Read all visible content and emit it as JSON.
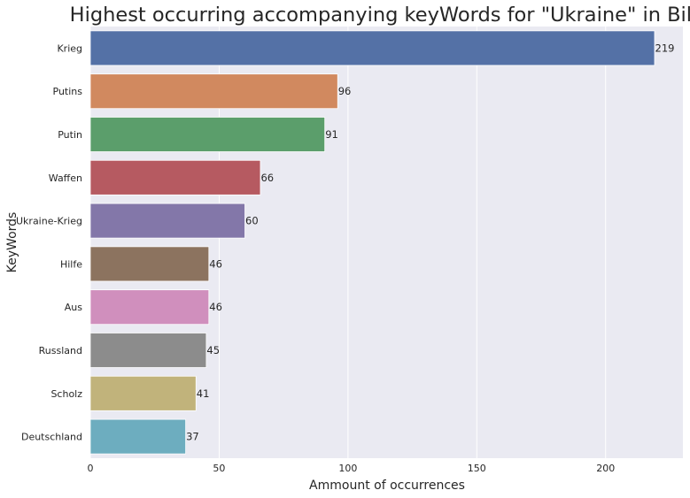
{
  "chart_data": {
    "type": "bar",
    "orientation": "horizontal",
    "title": "Highest occurring accompanying keyWords for \"Ukraine\" in Bild",
    "xlabel": "Ammount of occurrences",
    "ylabel": "KeyWords",
    "categories": [
      "Krieg",
      "Putins",
      "Putin",
      "Waffen",
      "Ukraine-Krieg",
      "Hilfe",
      "Aus",
      "Russland",
      "Scholz",
      "Deutschland"
    ],
    "values": [
      219,
      96,
      91,
      66,
      60,
      46,
      46,
      45,
      41,
      37
    ],
    "value_labels": [
      "219",
      "96",
      "91",
      "66",
      "60",
      "46",
      "46",
      "45",
      "41",
      "37"
    ],
    "xticks": [
      "0",
      "50",
      "100",
      "150",
      "200"
    ],
    "xtick_values": [
      0,
      50,
      100,
      150,
      200
    ],
    "xlim": [
      0,
      230
    ],
    "grid": true,
    "background": "#eaeaf2",
    "colors": [
      "#5471a6",
      "#d1895f",
      "#5b9e6b",
      "#b65a61",
      "#8377a9",
      "#8c735f",
      "#d08fbd",
      "#8c8c8c",
      "#c1b37b",
      "#6dadbf"
    ]
  }
}
